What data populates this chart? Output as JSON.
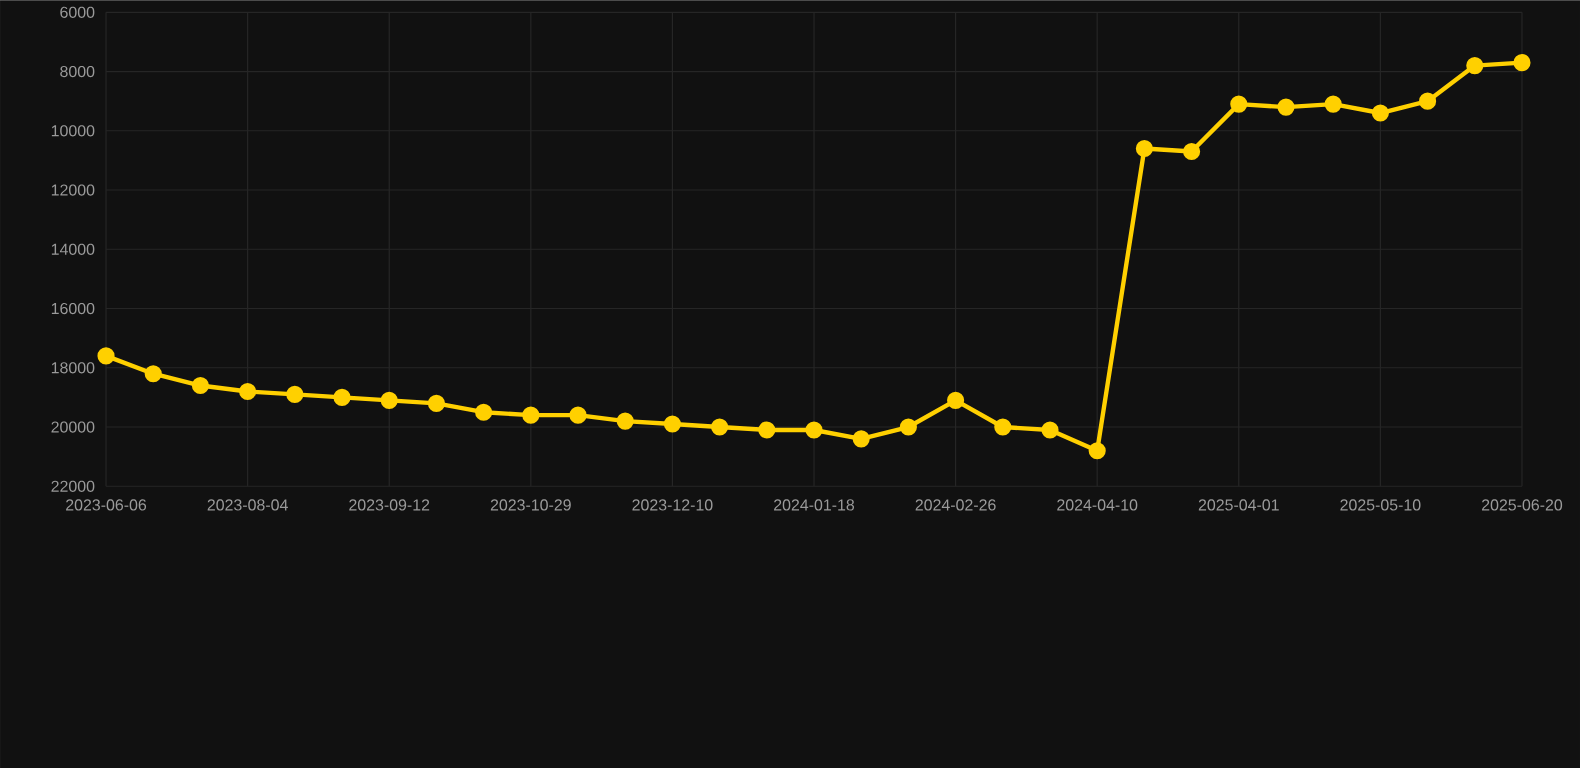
{
  "chart_data": {
    "type": "line",
    "categories": [
      "2023-06-06",
      null,
      null,
      "2023-08-04",
      null,
      null,
      "2023-09-12",
      null,
      null,
      "2023-10-29",
      null,
      null,
      "2023-12-10",
      null,
      null,
      "2024-01-18",
      null,
      null,
      "2024-02-26",
      null,
      null,
      "2024-04-10",
      null,
      null,
      "2025-04-01",
      null,
      null,
      "2025-05-10",
      null,
      null,
      "2025-06-20"
    ],
    "series": [
      {
        "color": "#ffd000",
        "values": [
          17600,
          18200,
          18600,
          18800,
          18900,
          19000,
          19100,
          19200,
          19500,
          19600,
          19600,
          19800,
          19900,
          20000,
          20100,
          20100,
          20400,
          20000,
          19100,
          20000,
          20100,
          20800,
          10600,
          10700,
          9100,
          9200,
          9100,
          9400,
          9000,
          7800,
          7700
        ]
      }
    ],
    "ylim": [
      22000,
      6000
    ],
    "yticks": [
      6000,
      8000,
      10000,
      12000,
      14000,
      16000,
      18000,
      20000,
      22000
    ],
    "grid": true,
    "marker": "circle",
    "line_style": "solid"
  }
}
